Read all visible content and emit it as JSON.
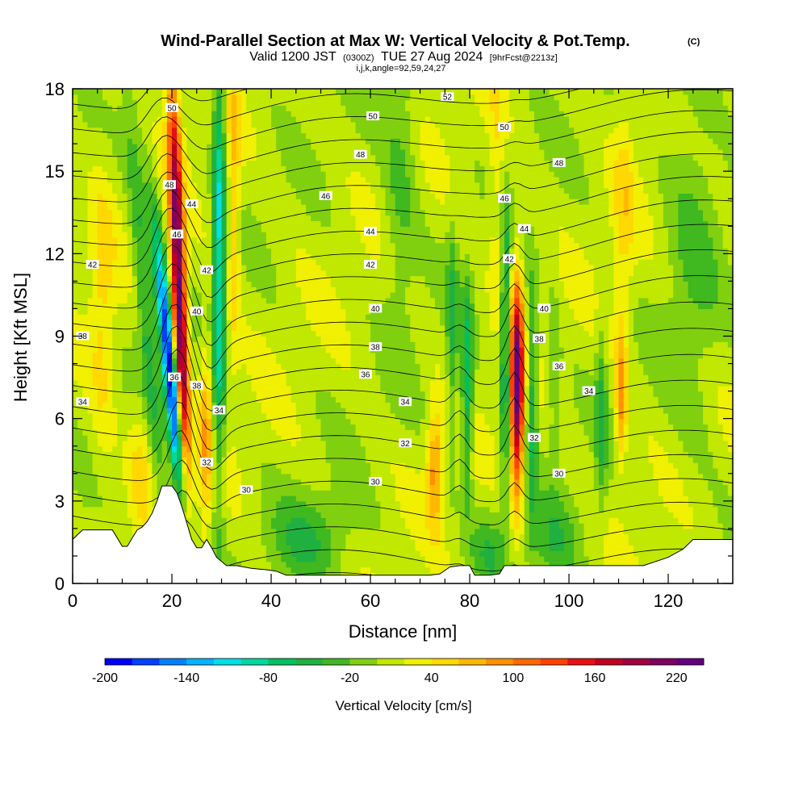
{
  "title": "Wind-Parallel Section at Max W: Vertical Velocity & Pot.Temp.",
  "title_mark": "(C)",
  "subtitle": {
    "valid_prefix": "Valid 1200 JST",
    "valid_utc": "(0300Z)",
    "valid_date": "TUE 27 Aug 2024",
    "forecast": "[9hrFcst@2213z]"
  },
  "indices": "i,j,k,angle=92,59,24,27",
  "chart_data": {
    "type": "heatmap",
    "xlabel": "Distance [nm]",
    "ylabel": "Height [Kft MSL]",
    "xlim": [
      0,
      133
    ],
    "ylim": [
      0,
      18
    ],
    "x_ticks": [
      0,
      20,
      40,
      60,
      80,
      100,
      120
    ],
    "y_ticks": [
      0,
      3,
      6,
      9,
      12,
      15,
      18
    ],
    "colorbar": {
      "title": "Vertical Velocity [cm/s]",
      "min": -200,
      "max": 240,
      "step": 20,
      "tick_labels": [
        "-200",
        "-140",
        "-80",
        "-20",
        "40",
        "100",
        "160",
        "220"
      ],
      "tick_values": [
        -200,
        -140,
        -80,
        -20,
        40,
        100,
        160,
        220
      ],
      "colors": [
        "#0000ff",
        "#0040ff",
        "#0080ff",
        "#00b4ff",
        "#00e0e8",
        "#00d8a0",
        "#00c060",
        "#20b040",
        "#40b820",
        "#80d010",
        "#c0e800",
        "#f0f000",
        "#ffd800",
        "#ffb800",
        "#ff9000",
        "#ff6800",
        "#ff4000",
        "#e81010",
        "#c00020",
        "#a00040",
        "#800060",
        "#600080"
      ]
    },
    "terrain": [
      [
        0,
        1.6
      ],
      [
        2,
        1.95
      ],
      [
        4,
        1.95
      ],
      [
        6,
        1.95
      ],
      [
        8,
        1.95
      ],
      [
        9,
        1.65
      ],
      [
        10,
        1.35
      ],
      [
        11,
        1.35
      ],
      [
        12,
        1.65
      ],
      [
        13,
        1.95
      ],
      [
        14,
        2.05
      ],
      [
        15,
        2.25
      ],
      [
        16,
        2.55
      ],
      [
        17,
        3.0
      ],
      [
        18,
        3.55
      ],
      [
        19,
        3.55
      ],
      [
        20,
        3.55
      ],
      [
        21,
        3.3
      ],
      [
        22,
        2.8
      ],
      [
        23,
        2.2
      ],
      [
        24,
        1.6
      ],
      [
        25,
        1.3
      ],
      [
        26,
        1.3
      ],
      [
        27,
        1.6
      ],
      [
        28,
        1.3
      ],
      [
        29,
        0.95
      ],
      [
        31,
        0.65
      ],
      [
        33,
        0.65
      ],
      [
        36,
        0.55
      ],
      [
        39,
        0.5
      ],
      [
        41,
        0.45
      ],
      [
        43,
        0.3
      ],
      [
        46,
        0.3
      ],
      [
        50,
        0.3
      ],
      [
        55,
        0.3
      ],
      [
        60,
        0.3
      ],
      [
        65,
        0.3
      ],
      [
        70,
        0.3
      ],
      [
        72,
        0.3
      ],
      [
        74,
        0.35
      ],
      [
        76,
        0.6
      ],
      [
        78,
        0.65
      ],
      [
        80,
        0.65
      ],
      [
        81,
        0.3
      ],
      [
        84,
        0.3
      ],
      [
        86,
        0.35
      ],
      [
        87,
        0.65
      ],
      [
        90,
        0.65
      ],
      [
        95,
        0.65
      ],
      [
        100,
        0.65
      ],
      [
        105,
        0.65
      ],
      [
        110,
        0.65
      ],
      [
        115,
        0.65
      ],
      [
        120,
        0.95
      ],
      [
        123,
        1.25
      ],
      [
        125,
        1.6
      ],
      [
        128,
        1.6
      ],
      [
        133,
        1.6
      ]
    ],
    "theta_labels": [
      {
        "x": 4,
        "y": 11.6,
        "v": "42"
      },
      {
        "x": 2,
        "y": 9.0,
        "v": "38"
      },
      {
        "x": 2,
        "y": 6.6,
        "v": "34"
      },
      {
        "x": 20,
        "y": 17.3,
        "v": "50"
      },
      {
        "x": 19.5,
        "y": 14.5,
        "v": "48"
      },
      {
        "x": 24,
        "y": 13.8,
        "v": "44"
      },
      {
        "x": 21,
        "y": 12.7,
        "v": "46"
      },
      {
        "x": 27,
        "y": 11.4,
        "v": "42"
      },
      {
        "x": 25,
        "y": 9.9,
        "v": "40"
      },
      {
        "x": 20.5,
        "y": 7.5,
        "v": "36"
      },
      {
        "x": 25,
        "y": 7.2,
        "v": "38"
      },
      {
        "x": 29.5,
        "y": 6.3,
        "v": "34"
      },
      {
        "x": 27,
        "y": 4.4,
        "v": "32"
      },
      {
        "x": 35,
        "y": 3.4,
        "v": "30"
      },
      {
        "x": 60.5,
        "y": 17.0,
        "v": "50"
      },
      {
        "x": 58,
        "y": 15.6,
        "v": "48"
      },
      {
        "x": 51,
        "y": 14.1,
        "v": "46"
      },
      {
        "x": 60,
        "y": 12.8,
        "v": "44"
      },
      {
        "x": 60,
        "y": 11.6,
        "v": "42"
      },
      {
        "x": 61,
        "y": 10.0,
        "v": "40"
      },
      {
        "x": 61,
        "y": 8.6,
        "v": "38"
      },
      {
        "x": 59,
        "y": 7.6,
        "v": "36"
      },
      {
        "x": 67,
        "y": 6.6,
        "v": "34"
      },
      {
        "x": 67,
        "y": 5.1,
        "v": "32"
      },
      {
        "x": 61,
        "y": 3.7,
        "v": "30"
      },
      {
        "x": 75.5,
        "y": 17.7,
        "v": "52"
      },
      {
        "x": 87,
        "y": 16.6,
        "v": "50"
      },
      {
        "x": 98,
        "y": 15.3,
        "v": "48"
      },
      {
        "x": 87,
        "y": 14.0,
        "v": "46"
      },
      {
        "x": 91,
        "y": 12.9,
        "v": "44"
      },
      {
        "x": 88,
        "y": 11.8,
        "v": "42"
      },
      {
        "x": 95,
        "y": 10.0,
        "v": "40"
      },
      {
        "x": 94,
        "y": 8.9,
        "v": "38"
      },
      {
        "x": 98,
        "y": 7.9,
        "v": "36"
      },
      {
        "x": 104,
        "y": 7.0,
        "v": "34"
      },
      {
        "x": 93,
        "y": 5.3,
        "v": "32"
      },
      {
        "x": 98,
        "y": 4.0,
        "v": "30"
      }
    ]
  }
}
